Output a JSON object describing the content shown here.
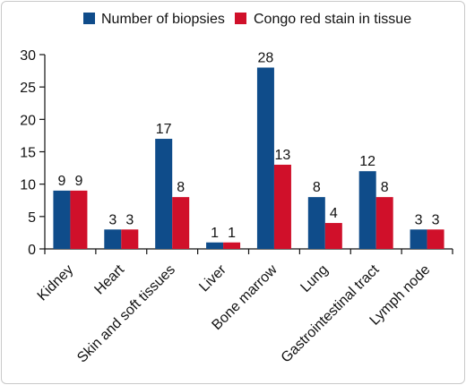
{
  "chart_data": {
    "type": "bar",
    "categories": [
      "Kidney",
      "Heart",
      "Skin and soft tissues",
      "Liver",
      "Bone marrow",
      "Lung",
      "Gastrointestinal tract",
      "Lymph node"
    ],
    "series": [
      {
        "name": "Number of biopsies",
        "values": [
          9,
          3,
          17,
          1,
          28,
          8,
          12,
          3
        ],
        "color": "#0f4c8a"
      },
      {
        "name": "Congo red stain in tissue",
        "values": [
          9,
          3,
          8,
          1,
          13,
          4,
          8,
          3
        ],
        "color": "#d0102a"
      }
    ],
    "ylim": [
      0,
      30
    ],
    "yticks": [
      0,
      5,
      10,
      15,
      20,
      25,
      30
    ],
    "grid": false,
    "legend": "top",
    "data_labels": true
  }
}
